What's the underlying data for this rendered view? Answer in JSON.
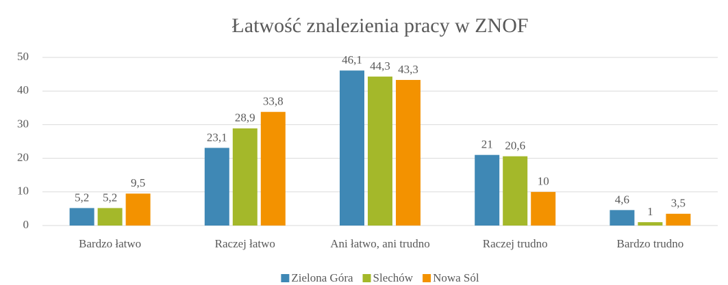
{
  "chart_data": {
    "type": "bar",
    "title": "Łatwość znalezienia pracy w ZNOF",
    "categories": [
      "Bardzo łatwo",
      "Raczej łatwo",
      "Ani łatwo, ani trudno",
      "Raczej trudno",
      "Bardzo trudno"
    ],
    "series": [
      {
        "name": "Zielona Góra",
        "color": "#3f88b5",
        "values": [
          5.2,
          23.1,
          46.1,
          21,
          4.6
        ],
        "value_labels": [
          "5,2",
          "23,1",
          "46,1",
          "21",
          "4,6"
        ]
      },
      {
        "name": "Slechów",
        "color": "#a4b82a",
        "values": [
          5.2,
          28.9,
          44.3,
          20.6,
          1
        ],
        "value_labels": [
          "5,2",
          "28,9",
          "44,3",
          "20,6",
          "1"
        ]
      },
      {
        "name": "Nowa Sól",
        "color": "#f39200",
        "values": [
          9.5,
          33.8,
          43.3,
          10,
          3.5
        ],
        "value_labels": [
          "9,5",
          "33,8",
          "43,3",
          "10",
          "3,5"
        ]
      }
    ],
    "ylim": [
      0,
      50
    ],
    "yticks": [
      0,
      10,
      20,
      30,
      40,
      50
    ],
    "grid": true,
    "legend": "bottom"
  }
}
